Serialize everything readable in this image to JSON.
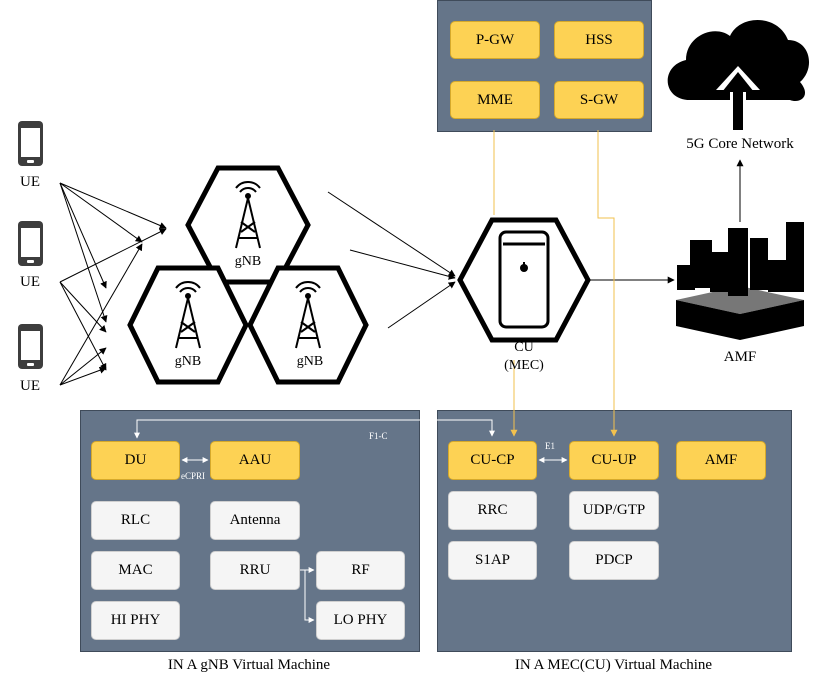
{
  "core_box": {
    "items": [
      "P-GW",
      "HSS",
      "MME",
      "S-GW"
    ]
  },
  "cloud": {
    "label": "5G Core Network"
  },
  "amf_top": {
    "label": "AMF"
  },
  "ue_labels": [
    "UE",
    "UE",
    "UE"
  ],
  "gnb_labels": [
    "gNB",
    "gNB",
    "gNB"
  ],
  "cu": {
    "label_line1": "CU",
    "label_line2": "(MEC)"
  },
  "gnb_vm": {
    "caption": "IN A gNB Virtual Machine",
    "link_f1c": "F1-C",
    "link_ecpri": "eCPRI",
    "du": "DU",
    "aau": "AAU",
    "rlc": "RLC",
    "antenna": "Antenna",
    "mac": "MAC",
    "rru": "RRU",
    "rf": "RF",
    "hiphy": "HI PHY",
    "lophy": "LO PHY"
  },
  "mec_vm": {
    "caption": "IN A MEC(CU) Virtual Machine",
    "link_e1": "E1",
    "cucp": "CU-CP",
    "cuup": "CU-UP",
    "amf": "AMF",
    "rrc": "RRC",
    "udp": "UDP/GTP",
    "s1ap": "S1AP",
    "pdcp": "PDCP"
  },
  "colors": {
    "panel": "#657589",
    "yellow_box": "#fdd254",
    "white_box": "#f5f5f5",
    "link_yellow": "#f2c14e"
  }
}
